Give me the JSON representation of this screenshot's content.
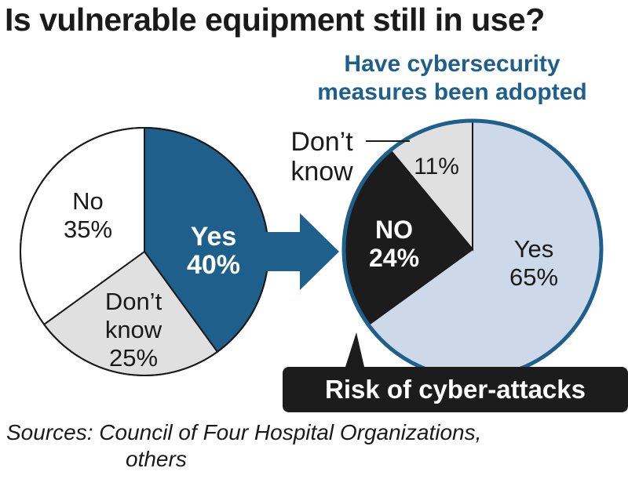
{
  "title": "Is vulnerable equipment still in use?",
  "subtitle_lines": [
    "Have cybersecurity",
    "measures been adopted"
  ],
  "callout": "Risk of cyber-attacks",
  "source_lines": [
    "Sources: Council of Four Hospital Organizations,",
    "others"
  ],
  "colors": {
    "dark_blue": "#1f5f8b",
    "light_blue": "#cdd8e8",
    "light_gray": "#e0e0e0",
    "black": "#1c1c1c",
    "white": "#ffffff"
  },
  "chart_data": [
    {
      "type": "pie",
      "title": "Is vulnerable equipment still in use?",
      "slices": [
        {
          "label": "Yes",
          "value": 40,
          "color": "#1f5f8b",
          "text_color": "#ffffff",
          "bold": true
        },
        {
          "label": "Don’t know",
          "value": 25,
          "color": "#e0e0e0",
          "text_color": "#1a1a1a",
          "bold": false
        },
        {
          "label": "No",
          "value": 35,
          "color": "#ffffff",
          "text_color": "#1a1a1a",
          "bold": false
        }
      ]
    },
    {
      "type": "pie",
      "title": "Have cybersecurity measures been adopted",
      "slices": [
        {
          "label": "Yes",
          "value": 65,
          "color": "#cdd8e8",
          "text_color": "#1a1a1a",
          "bold": false
        },
        {
          "label": "NO",
          "value": 24,
          "color": "#1c1c1c",
          "text_color": "#ffffff",
          "bold": true
        },
        {
          "label": "Don’t know",
          "value": 11,
          "color": "#e0e0e0",
          "text_color": "#1a1a1a",
          "bold": false
        }
      ]
    }
  ]
}
